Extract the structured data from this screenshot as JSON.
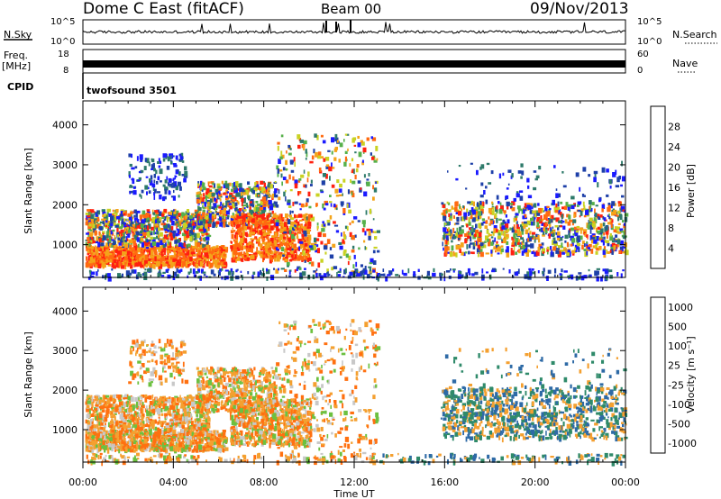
{
  "header": {
    "station": "Dome C East (fitACF)",
    "beam": "Beam 00",
    "date": "09/Nov/2013",
    "cpid_label": "CPID",
    "cpid_value": "twofsound 3501"
  },
  "top_panels": {
    "nsky_label": "N.Sky",
    "nsky_ticks": [
      "10^5",
      "10^0"
    ],
    "nsearch_label": "N.Search",
    "nsearch_ticks": [
      "10^5",
      "10^0"
    ],
    "freq_label": "Freq.",
    "freq_unit": "[MHz]",
    "freq_ticks": [
      "18",
      "8"
    ],
    "nave_label": "Nave",
    "nave_ticks": [
      "60",
      "0"
    ]
  },
  "chart_data": [
    {
      "type": "heatmap",
      "name": "power",
      "ylabel": "Slant Range [km]",
      "yticks": [
        1000,
        2000,
        3000,
        4000
      ],
      "ylim": [
        180,
        4600
      ],
      "colorbar_label": "Power [dB]",
      "colorbar_ticks": [
        "4",
        "8",
        "12",
        "16",
        "20",
        "24",
        "28"
      ],
      "colors": [
        "#1a1aff",
        "#1e40a8",
        "#2e7a6a",
        "#56b04a",
        "#c9d223",
        "#f4a41a",
        "#ff6a10",
        "#ff2010"
      ]
    },
    {
      "type": "heatmap",
      "name": "velocity",
      "ylabel": "Slant Range [km]",
      "yticks": [
        1000,
        2000,
        3000,
        4000
      ],
      "ylim": [
        180,
        4600
      ],
      "colorbar_label": "Velocity [m s⁻¹]",
      "colorbar_ticks": [
        "1000",
        "500",
        "100",
        "25",
        "-25",
        "-100",
        "-500",
        "-1000"
      ],
      "colors": [
        "#2040c0",
        "#2e6aa6",
        "#2f8a6a",
        "#6cc040",
        "#c8c8c8",
        "#f4a030",
        "#ff7010",
        "#ff2010"
      ]
    }
  ],
  "xaxis": {
    "label": "Time UT",
    "ticks": [
      "00:00",
      "04:00",
      "08:00",
      "12:00",
      "16:00",
      "20:00",
      "00:00"
    ]
  }
}
